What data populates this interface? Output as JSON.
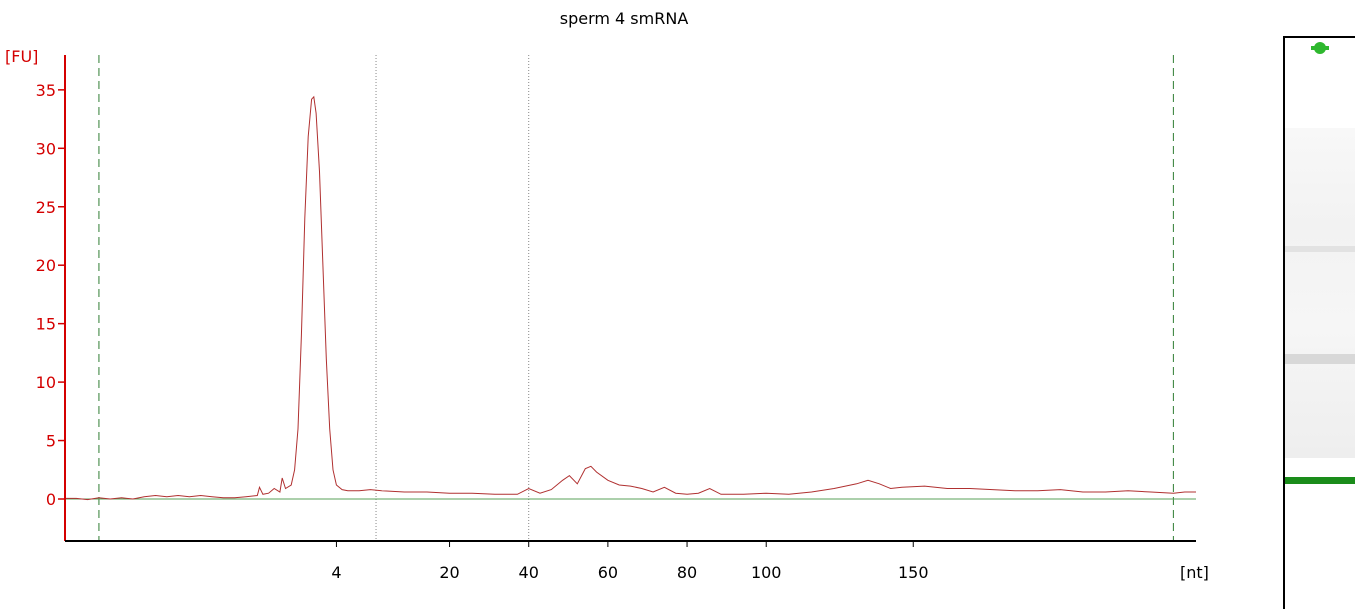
{
  "title": "sperm 4 smRNA",
  "colors": {
    "trace": "#b03030",
    "axis_y": "#d40000",
    "baseline": "#5aa05a",
    "marker_line": "#2e7d32",
    "peak_line": "#888888",
    "gel_band": "#1a8c1a"
  },
  "chart_data": {
    "type": "line",
    "title": "sperm 4 smRNA",
    "ylabel": "[FU]",
    "xlabel": "[nt]",
    "ylim": [
      -3.5,
      38
    ],
    "y_ticks": [
      0,
      5,
      10,
      15,
      20,
      25,
      30,
      35
    ],
    "x_ticks": [
      {
        "label": "4",
        "pos": 24
      },
      {
        "label": "20",
        "pos": 34
      },
      {
        "label": "40",
        "pos": 41
      },
      {
        "label": "60",
        "pos": 48
      },
      {
        "label": "80",
        "pos": 55
      },
      {
        "label": "100",
        "pos": 62
      },
      {
        "label": "150",
        "pos": 75
      }
    ],
    "x_range": [
      0,
      100
    ],
    "marker_lines": [
      3,
      98
    ],
    "peak_lines": [
      27.5,
      41
    ],
    "baseline": 0,
    "series": [
      {
        "points": [
          [
            0,
            0.05
          ],
          [
            1,
            0.05
          ],
          [
            2,
            -0.05
          ],
          [
            3,
            0.1
          ],
          [
            4,
            0
          ],
          [
            5,
            0.1
          ],
          [
            6,
            0
          ],
          [
            7,
            0.2
          ],
          [
            8,
            0.3
          ],
          [
            9,
            0.2
          ],
          [
            10,
            0.3
          ],
          [
            11,
            0.2
          ],
          [
            12,
            0.3
          ],
          [
            13,
            0.2
          ],
          [
            14,
            0.1
          ],
          [
            15,
            0.1
          ],
          [
            16,
            0.2
          ],
          [
            17,
            0.3
          ],
          [
            17.2,
            1.0
          ],
          [
            17.5,
            0.4
          ],
          [
            18,
            0.5
          ],
          [
            18.5,
            0.9
          ],
          [
            19,
            0.6
          ],
          [
            19.2,
            1.8
          ],
          [
            19.5,
            0.9
          ],
          [
            20,
            1.2
          ],
          [
            20.3,
            2.5
          ],
          [
            20.6,
            6
          ],
          [
            20.9,
            14
          ],
          [
            21.2,
            24
          ],
          [
            21.5,
            31
          ],
          [
            21.8,
            34.2
          ],
          [
            22.0,
            34.4
          ],
          [
            22.2,
            33
          ],
          [
            22.5,
            28
          ],
          [
            22.8,
            20
          ],
          [
            23.1,
            12
          ],
          [
            23.4,
            6
          ],
          [
            23.7,
            2.5
          ],
          [
            24.0,
            1.2
          ],
          [
            24.5,
            0.8
          ],
          [
            25,
            0.7
          ],
          [
            26,
            0.7
          ],
          [
            27,
            0.8
          ],
          [
            28,
            0.7
          ],
          [
            30,
            0.6
          ],
          [
            32,
            0.6
          ],
          [
            34,
            0.5
          ],
          [
            36,
            0.5
          ],
          [
            38,
            0.4
          ],
          [
            40,
            0.4
          ],
          [
            41,
            0.9
          ],
          [
            42,
            0.5
          ],
          [
            43,
            0.8
          ],
          [
            44,
            1.6
          ],
          [
            44.6,
            2.0
          ],
          [
            45.3,
            1.3
          ],
          [
            46,
            2.6
          ],
          [
            46.5,
            2.8
          ],
          [
            47,
            2.3
          ],
          [
            48,
            1.6
          ],
          [
            49,
            1.2
          ],
          [
            50,
            1.1
          ],
          [
            51,
            0.9
          ],
          [
            52,
            0.6
          ],
          [
            53,
            1.0
          ],
          [
            54,
            0.5
          ],
          [
            55,
            0.4
          ],
          [
            56,
            0.5
          ],
          [
            57,
            0.9
          ],
          [
            58,
            0.4
          ],
          [
            60,
            0.4
          ],
          [
            62,
            0.5
          ],
          [
            64,
            0.4
          ],
          [
            66,
            0.6
          ],
          [
            68,
            0.9
          ],
          [
            70,
            1.3
          ],
          [
            71,
            1.6
          ],
          [
            72,
            1.3
          ],
          [
            73,
            0.9
          ],
          [
            74,
            1.0
          ],
          [
            76,
            1.1
          ],
          [
            78,
            0.9
          ],
          [
            80,
            0.9
          ],
          [
            82,
            0.8
          ],
          [
            84,
            0.7
          ],
          [
            86,
            0.7
          ],
          [
            88,
            0.8
          ],
          [
            90,
            0.6
          ],
          [
            92,
            0.6
          ],
          [
            94,
            0.7
          ],
          [
            96,
            0.6
          ],
          [
            98,
            0.5
          ],
          [
            99,
            0.6
          ],
          [
            100,
            0.6
          ]
        ]
      }
    ]
  }
}
